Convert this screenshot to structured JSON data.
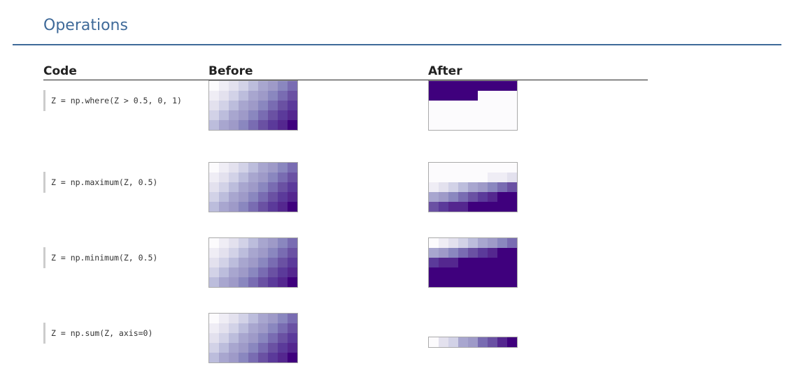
{
  "section": {
    "title": "Operations"
  },
  "table": {
    "headers": [
      "Code",
      "Before",
      "After"
    ],
    "rows": [
      {
        "code": "Z = np.where(Z > 0.5, 0, 1)",
        "before": [
          [
            0,
            1,
            2,
            3,
            4,
            5,
            6,
            7,
            8
          ],
          [
            1,
            2,
            3,
            4,
            5,
            6,
            7,
            8,
            9
          ],
          [
            2,
            3,
            4,
            5,
            6,
            7,
            8,
            9,
            10
          ],
          [
            3,
            4,
            5,
            6,
            7,
            8,
            9,
            10,
            11
          ],
          [
            4,
            5,
            6,
            7,
            8,
            9,
            10,
            11,
            12
          ]
        ],
        "after": [
          [
            12,
            12,
            12,
            12,
            12,
            12,
            12,
            12,
            12
          ],
          [
            12,
            12,
            12,
            12,
            12,
            0,
            0,
            0,
            0
          ],
          [
            0,
            0,
            0,
            0,
            0,
            0,
            0,
            0,
            0
          ],
          [
            0,
            0,
            0,
            0,
            0,
            0,
            0,
            0,
            0
          ],
          [
            0,
            0,
            0,
            0,
            0,
            0,
            0,
            0,
            0
          ]
        ]
      },
      {
        "code": "Z = np.maximum(Z, 0.5)",
        "before": [
          [
            0,
            1,
            2,
            3,
            4,
            5,
            6,
            7,
            8
          ],
          [
            1,
            2,
            3,
            4,
            5,
            6,
            7,
            8,
            9
          ],
          [
            2,
            3,
            4,
            5,
            6,
            7,
            8,
            9,
            10
          ],
          [
            3,
            4,
            5,
            6,
            7,
            8,
            9,
            10,
            11
          ],
          [
            4,
            5,
            6,
            7,
            8,
            9,
            10,
            11,
            12
          ]
        ],
        "after": [
          [
            0,
            0,
            0,
            0,
            0,
            0,
            0,
            0,
            0
          ],
          [
            0,
            0,
            0,
            0,
            0,
            0,
            1,
            1,
            2
          ],
          [
            1,
            2,
            3,
            4,
            5,
            6,
            7,
            8,
            9
          ],
          [
            5,
            6,
            7,
            8,
            9,
            10,
            11,
            12,
            12
          ],
          [
            9,
            10,
            11,
            11,
            12,
            12,
            12,
            12,
            12
          ]
        ]
      },
      {
        "code": "Z = np.minimum(Z, 0.5)",
        "before": [
          [
            0,
            1,
            2,
            3,
            4,
            5,
            6,
            7,
            8
          ],
          [
            1,
            2,
            3,
            4,
            5,
            6,
            7,
            8,
            9
          ],
          [
            2,
            3,
            4,
            5,
            6,
            7,
            8,
            9,
            10
          ],
          [
            3,
            4,
            5,
            6,
            7,
            8,
            9,
            10,
            11
          ],
          [
            4,
            5,
            6,
            7,
            8,
            9,
            10,
            11,
            12
          ]
        ],
        "after": [
          [
            0,
            1,
            2,
            3,
            4,
            5,
            6,
            7,
            8
          ],
          [
            5,
            6,
            7,
            8,
            9,
            10,
            11,
            12,
            12
          ],
          [
            10,
            11,
            11,
            12,
            12,
            12,
            12,
            12,
            12
          ],
          [
            12,
            12,
            12,
            12,
            12,
            12,
            12,
            12,
            12
          ],
          [
            12,
            12,
            12,
            12,
            12,
            12,
            12,
            12,
            12
          ]
        ]
      },
      {
        "code": "Z = np.sum(Z, axis=0)",
        "before": [
          [
            0,
            1,
            2,
            3,
            4,
            5,
            6,
            7,
            8
          ],
          [
            1,
            2,
            3,
            4,
            5,
            6,
            7,
            8,
            9
          ],
          [
            2,
            3,
            4,
            5,
            6,
            7,
            8,
            9,
            10
          ],
          [
            3,
            4,
            5,
            6,
            7,
            8,
            9,
            10,
            11
          ],
          [
            4,
            5,
            6,
            7,
            8,
            9,
            10,
            11,
            12
          ]
        ],
        "after": [
          [
            0,
            2,
            3,
            5,
            6,
            8,
            9,
            11,
            12
          ]
        ]
      }
    ]
  },
  "colors": {
    "scale": [
      "#fcfbfd",
      "#efedf5",
      "#e3e1ee",
      "#d2d2e7",
      "#bcbddc",
      "#a8a6cf",
      "#9e9ac8",
      "#8a87bf",
      "#796cb2",
      "#6a51a3",
      "#5b3a9a",
      "#54278f",
      "#3f007d"
    ],
    "title": "#3f6a99"
  }
}
